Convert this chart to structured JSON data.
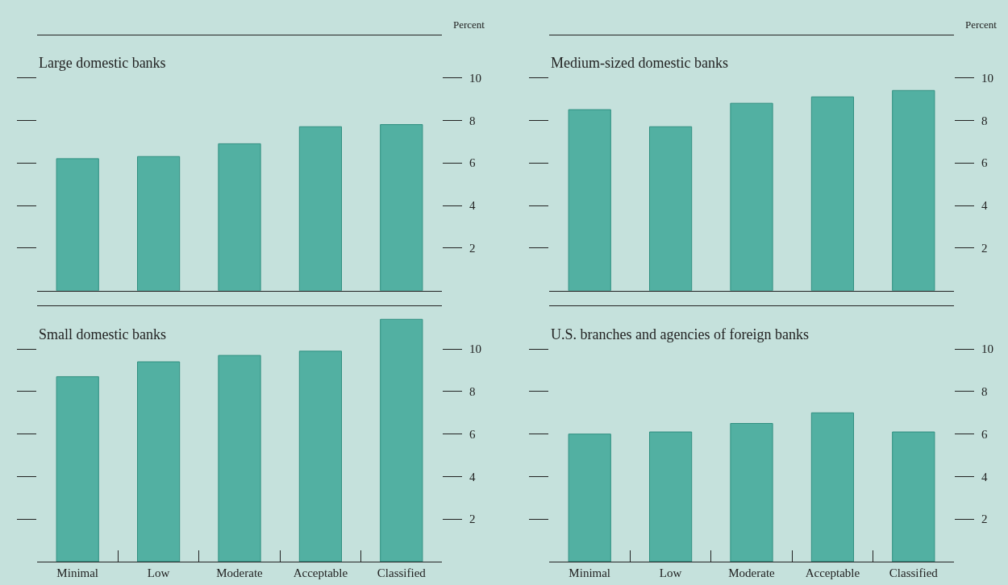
{
  "chart_data": [
    {
      "type": "bar",
      "title": "Large domestic banks",
      "ylabel": "Percent",
      "categories": [
        null,
        null,
        null,
        null,
        null
      ],
      "values": [
        6.2,
        6.3,
        6.9,
        7.7,
        7.8
      ],
      "color": "#52b0a2",
      "ylim": [
        0,
        12
      ],
      "yticks": [
        2,
        4,
        6,
        8,
        10
      ],
      "grid": false
    },
    {
      "type": "bar",
      "title": "Medium-sized domestic banks",
      "ylabel": "Percent",
      "categories": [
        null,
        null,
        null,
        null,
        null
      ],
      "values": [
        8.5,
        7.7,
        8.8,
        9.1,
        9.4
      ],
      "color": "#52b0a2",
      "ylim": [
        0,
        12
      ],
      "yticks": [
        2,
        4,
        6,
        8,
        10
      ],
      "grid": false
    },
    {
      "type": "bar",
      "title": "Small domestic banks",
      "categories": [
        "Minimal",
        "Low",
        "Moderate",
        "Acceptable",
        "Classified"
      ],
      "values": [
        8.7,
        9.4,
        9.7,
        9.9,
        11.4
      ],
      "color": "#52b0a2",
      "ylim": [
        0,
        12
      ],
      "yticks": [
        2,
        4,
        6,
        8,
        10
      ],
      "grid": false
    },
    {
      "type": "bar",
      "title": "U.S. branches and agencies of foreign banks",
      "categories": [
        "Minimal",
        "Low",
        "Moderate",
        "Acceptable",
        "Classified"
      ],
      "values": [
        6.0,
        6.1,
        6.5,
        7.0,
        6.1
      ],
      "color": "#52b0a2",
      "ylim": [
        0,
        12
      ],
      "yticks": [
        2,
        4,
        6,
        8,
        10
      ],
      "grid": false
    }
  ]
}
